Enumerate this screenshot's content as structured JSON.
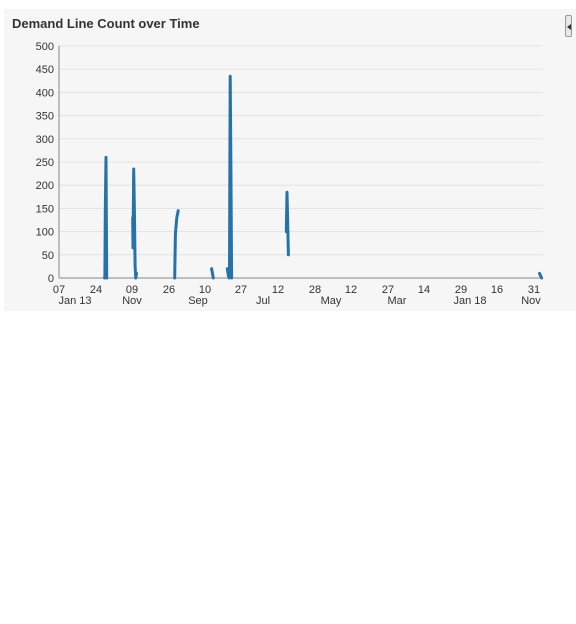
{
  "panel": {
    "title": "Demand Line Count over Time"
  },
  "colors": {
    "series": "#2573a8",
    "grid": "#e2e2e2",
    "axis": "#888888",
    "background": "#f6f6f6"
  },
  "icons": {
    "collapse": "chevron-left-icon"
  },
  "chart_data": {
    "type": "line",
    "title": "Demand Line Count over Time",
    "xlabel": "",
    "ylabel": "",
    "ylim": [
      0,
      500
    ],
    "y_ticks": [
      "0",
      "50",
      "100",
      "150",
      "200",
      "250",
      "300",
      "350",
      "400",
      "450",
      "500"
    ],
    "x_tick_labels": [
      {
        "day": "07",
        "sub": "Jan 13"
      },
      {
        "day": "24",
        "sub": ""
      },
      {
        "day": "09",
        "sub": "Nov"
      },
      {
        "day": "26",
        "sub": ""
      },
      {
        "day": "10",
        "sub": "Sep"
      },
      {
        "day": "27",
        "sub": ""
      },
      {
        "day": "12",
        "sub": "Jul"
      },
      {
        "day": "28",
        "sub": ""
      },
      {
        "day": "12",
        "sub": "May"
      },
      {
        "day": "27",
        "sub": ""
      },
      {
        "day": "14",
        "sub": "Mar"
      },
      {
        "day": "29",
        "sub": ""
      },
      {
        "day": "16",
        "sub": "Jan 18"
      },
      {
        "day": "31",
        "sub": ""
      },
      {
        "day": "",
        "sub": "Nov"
      }
    ],
    "grid": true,
    "legend": "none",
    "series": [
      {
        "segments": [
          [
            [
              13.0,
              0
            ],
            [
              13.1,
              5
            ],
            [
              13.2,
              145
            ],
            [
              13.4,
              260
            ],
            [
              13.6,
              0
            ]
          ],
          [
            [
              21.0,
              130
            ],
            [
              21.1,
              65
            ],
            [
              21.3,
              235
            ],
            [
              21.5,
              145
            ],
            [
              21.7,
              25
            ],
            [
              21.9,
              0
            ],
            [
              22.1,
              10
            ]
          ],
          [
            [
              33.0,
              0
            ],
            [
              33.2,
              95
            ],
            [
              33.6,
              130
            ],
            [
              34.0,
              145
            ]
          ],
          [
            [
              43.5,
              20
            ],
            [
              44.0,
              0
            ]
          ],
          [
            [
              48.0,
              20
            ],
            [
              48.3,
              5
            ],
            [
              48.5,
              0
            ],
            [
              48.6,
              15
            ],
            [
              48.8,
              435
            ],
            [
              49.0,
              240
            ],
            [
              49.2,
              0
            ]
          ],
          [
            [
              64.8,
              100
            ],
            [
              65.0,
              185
            ],
            [
              65.4,
              50
            ]
          ],
          [
            [
              137.0,
              10
            ],
            [
              137.3,
              5
            ],
            [
              137.6,
              0
            ]
          ]
        ]
      }
    ]
  }
}
